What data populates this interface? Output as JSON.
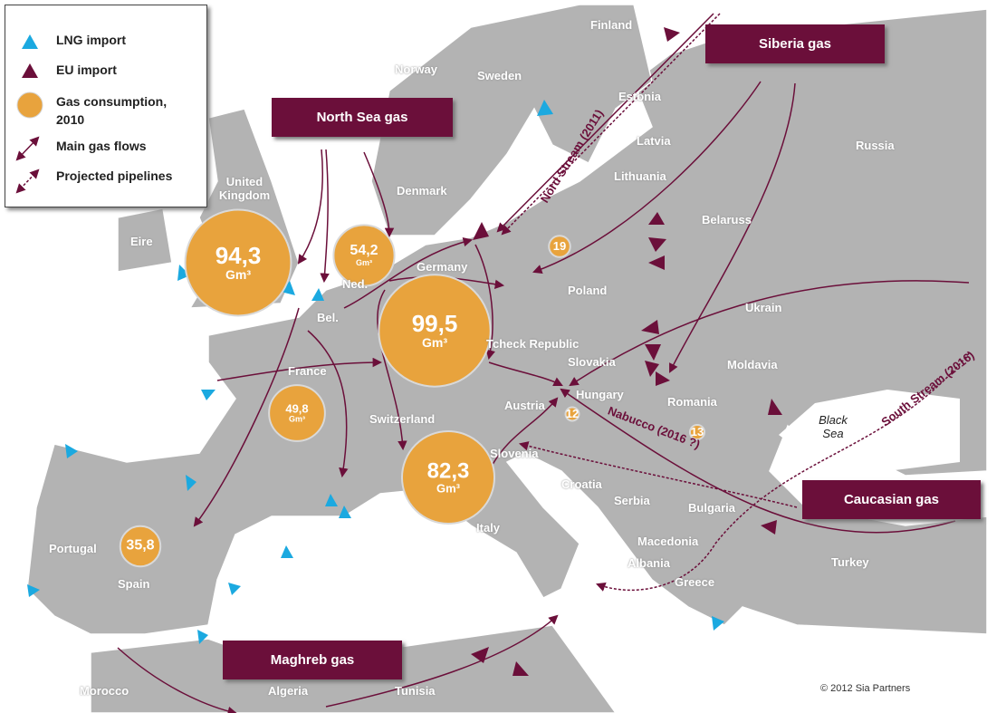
{
  "legend": {
    "items": [
      "LNG import",
      "EU import",
      "Gas consumption, 2010",
      "Main gas flows",
      "Projected pipelines"
    ]
  },
  "sources": [
    "North Sea gas",
    "Siberia gas",
    "Caucasian gas",
    "Maghreb gas"
  ],
  "pipelines": [
    "Nord Stream (2011)",
    "South Stream (2016)",
    "Nabucco (2016 ?)"
  ],
  "countries": [
    "Finland",
    "Norway",
    "Sweden",
    "Estonia",
    "Latvia",
    "Russia",
    "Lithuania",
    "United Kingdom",
    "Denmark",
    "Belaruss",
    "Eire",
    "Germany",
    "Ned.",
    "Poland",
    "Bel.",
    "Ukrain",
    "Tcheck Republic",
    "France",
    "Slovakia",
    "Moldavia",
    "Hungary",
    "Austria",
    "Romania",
    "Switzerland",
    "Slovenia",
    "Croatia",
    "Serbia",
    "Bulgaria",
    "Italy",
    "Macedonia",
    "Albania",
    "Portugal",
    "Spain",
    "Greece",
    "Turkey",
    "Morocco",
    "Algeria",
    "Tunisia"
  ],
  "sea": "Black Sea",
  "consumption_unit": "Gm³",
  "consumption": [
    {
      "value": 94.3,
      "label": "94,3"
    },
    {
      "value": 54.2,
      "label": "54,2"
    },
    {
      "value": 99.5,
      "label": "99,5"
    },
    {
      "value": 82.3,
      "label": "82,3"
    },
    {
      "value": 49.8,
      "label": "49,8"
    },
    {
      "value": 35.8,
      "label": "35,8"
    },
    19,
    12,
    13
  ],
  "copyright": "© 2012 Sia Partners"
}
